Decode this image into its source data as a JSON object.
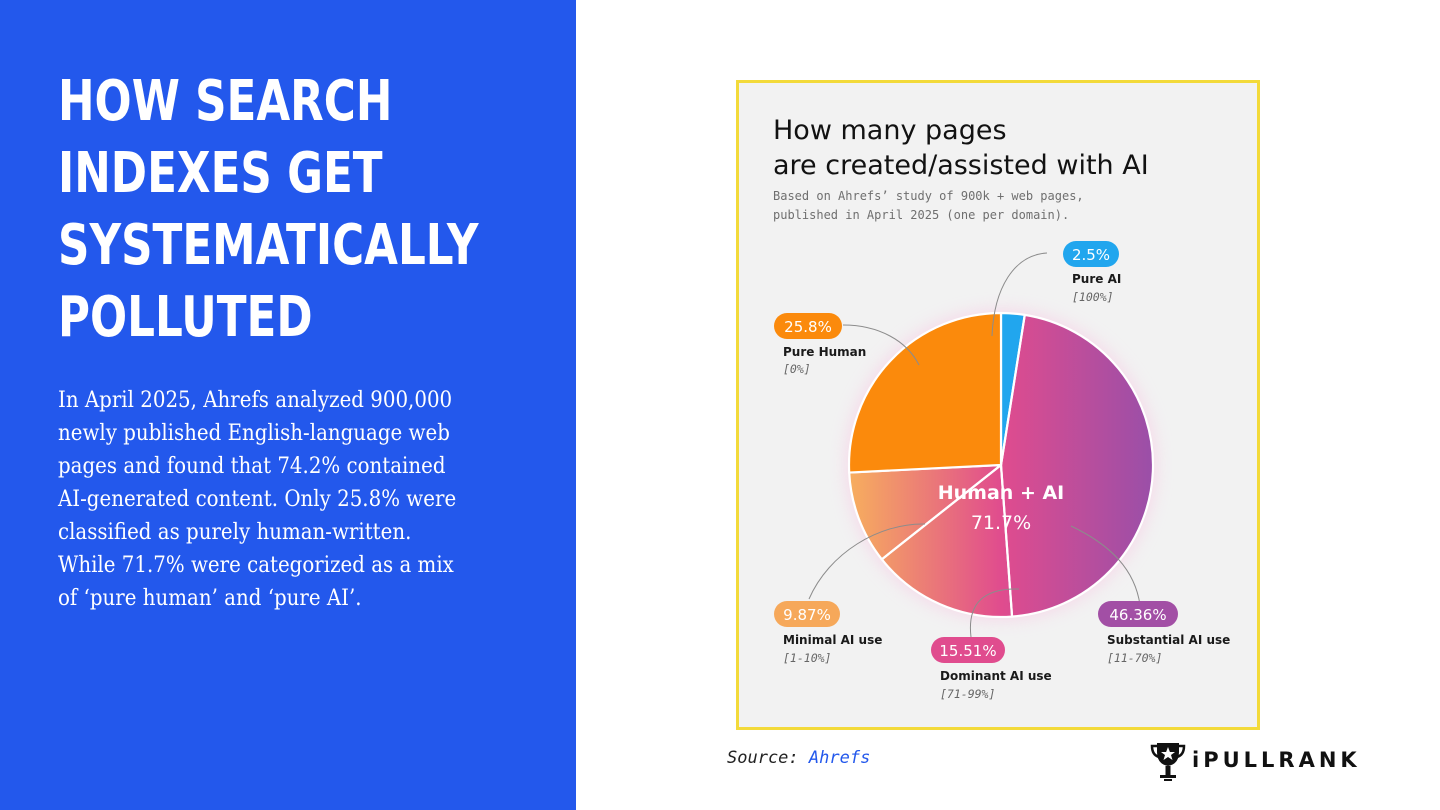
{
  "slide": {
    "headline": [
      "HOW SEARCH",
      "INDEXES GET",
      "SYSTEMATICALLY",
      "POLLUTED"
    ],
    "body": [
      "In April 2025, Ahrefs analyzed 900,000",
      "newly published English-language web",
      "pages and found that 74.2% contained",
      "AI-generated content. Only 25.8% were",
      "classified as purely human-written.",
      "While 71.7% were categorized as a mix",
      "of ‘pure human’ and ‘pure AI’."
    ],
    "source_label": "Source:",
    "source_link": "Ahrefs",
    "logo_text": "iPULLRANK"
  },
  "colors": {
    "left_panel": "#2358ec",
    "card_border": "#f3da3a",
    "pure_ai": "#21a6ee",
    "substantial_ai": "#a24fa5",
    "dominant_ai": "#e04c8e",
    "minimal_ai": "#f6a85a",
    "pure_human": "#fb8a0c"
  },
  "chart_data": {
    "type": "pie",
    "title": [
      "How many pages",
      "are created/assisted with AI"
    ],
    "subtitle": [
      "Based on Ahrefs’ study of 900k + web pages,",
      "published in April 2025 (one per domain)."
    ],
    "center_label": "Human + AI",
    "center_value": "71.7%",
    "slices": [
      {
        "name": "Pure AI",
        "range": "[100%]",
        "value": 2.5,
        "label": "2.5%",
        "color": "#21a6ee"
      },
      {
        "name": "Substantial AI use",
        "range": "[11-70%]",
        "value": 46.36,
        "label": "46.36%",
        "color": "#a24fa5"
      },
      {
        "name": "Dominant AI use",
        "range": "[71-99%]",
        "value": 15.51,
        "label": "15.51%",
        "color": "#e04c8e"
      },
      {
        "name": "Minimal AI use",
        "range": "[1-10%]",
        "value": 9.87,
        "label": "9.87%",
        "color": "#f6a85a"
      },
      {
        "name": "Pure Human",
        "range": "[0%]",
        "value": 25.8,
        "label": "25.8%",
        "color": "#fb8a0c"
      }
    ]
  }
}
